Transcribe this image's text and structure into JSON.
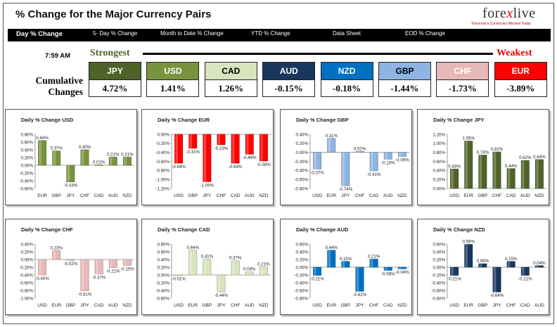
{
  "title": "% Change for the Major Currency Pairs",
  "logo": {
    "text_left": "fore",
    "text_x": "x",
    "text_right": "live",
    "tagline": "Tomorrow's Currencies Window Today"
  },
  "nav": [
    "Day % Change",
    "5- Day % Change",
    "Month to Date % Change",
    "YTD % Change",
    "Data Sheet",
    "EOD % Change"
  ],
  "time": "7:59 AM",
  "strongest_label": "Strongest",
  "weakest_label": "Weakest",
  "cumulative_label": [
    "Cumulative",
    "Changes"
  ],
  "cumulative": [
    {
      "ccy": "JPY",
      "value": "4.72%",
      "bg": "#4f6228",
      "fg": "#ffffff"
    },
    {
      "ccy": "USD",
      "value": "1.41%",
      "bg": "#77933c",
      "fg": "#ffffff"
    },
    {
      "ccy": "CAD",
      "value": "1.26%",
      "bg": "#d7e4bd",
      "fg": "#000000"
    },
    {
      "ccy": "AUD",
      "value": "-0.15%",
      "bg": "#17375e",
      "fg": "#ffffff"
    },
    {
      "ccy": "NZD",
      "value": "-0.18%",
      "bg": "#0070c0",
      "fg": "#ffffff"
    },
    {
      "ccy": "GBP",
      "value": "-1.44%",
      "bg": "#8db4e2",
      "fg": "#000000"
    },
    {
      "ccy": "CHF",
      "value": "-1.73%",
      "bg": "#e6b9b8",
      "fg": "#ffffff"
    },
    {
      "ccy": "EUR",
      "value": "-3.89%",
      "bg": "#ff0000",
      "fg": "#ffffff"
    }
  ],
  "chart_data": [
    {
      "type": "bar",
      "title": "Daily % Change USD",
      "base": "USD",
      "color": "#77933c",
      "categories": [
        "EUR",
        "GBP",
        "JPY",
        "CHF",
        "CAD",
        "AUD",
        "NZD"
      ],
      "values": [
        0.64,
        0.37,
        -0.43,
        0.4,
        0.01,
        0.21,
        0.21
      ],
      "ylim": [
        -0.6,
        0.8
      ],
      "yticks": [
        -0.6,
        -0.4,
        -0.2,
        0,
        0.2,
        0.4,
        0.6,
        0.8
      ],
      "grid": false
    },
    {
      "type": "bar",
      "title": "Daily % Change EUR",
      "base": "EUR",
      "color": "#ff0000",
      "categories": [
        "USD",
        "GBP",
        "JPY",
        "CHF",
        "CAD",
        "AUD",
        "NZD"
      ],
      "values": [
        -0.64,
        -0.31,
        -1.05,
        -0.23,
        -0.64,
        -0.44,
        -0.59
      ],
      "ylim": [
        -1.2,
        0
      ],
      "yticks": [
        -1.2,
        -1.0,
        -0.8,
        -0.6,
        -0.4,
        -0.2,
        0
      ],
      "grid": false
    },
    {
      "type": "bar",
      "title": "Daily % Change GBP",
      "base": "GBP",
      "color": "#8db4e2",
      "categories": [
        "USD",
        "EUR",
        "JPY",
        "CHF",
        "CAD",
        "AUD",
        "NZD"
      ],
      "values": [
        -0.37,
        0.31,
        -0.74,
        0.02,
        -0.41,
        -0.15,
        -0.09
      ],
      "ylim": [
        -0.8,
        0.4
      ],
      "yticks": [
        -0.8,
        -0.6,
        -0.4,
        -0.2,
        0,
        0.2,
        0.4
      ],
      "grid": false
    },
    {
      "type": "bar",
      "title": "Daily % Change JPY",
      "base": "JPY",
      "color": "#4f6228",
      "categories": [
        "USD",
        "EUR",
        "GBP",
        "CHF",
        "CAD",
        "AUD",
        "NZD"
      ],
      "values": [
        0.43,
        1.05,
        0.74,
        0.81,
        0.44,
        0.62,
        0.64
      ],
      "ylim": [
        0,
        1.2
      ],
      "yticks": [
        0,
        0.2,
        0.4,
        0.6,
        0.8,
        1.0,
        1.2
      ],
      "grid": false
    },
    {
      "type": "bar",
      "title": "Daily % Change CHF",
      "base": "CHF",
      "color": "#e6b9b8",
      "categories": [
        "USD",
        "EUR",
        "GBP",
        "JPY",
        "CAD",
        "AUD",
        "NZD"
      ],
      "values": [
        -0.4,
        0.23,
        -0.02,
        -0.81,
        -0.37,
        -0.21,
        -0.15
      ],
      "ylim": [
        -1.0,
        0.4
      ],
      "yticks": [
        -1.0,
        -0.8,
        -0.6,
        -0.4,
        -0.2,
        0,
        0.2,
        0.4
      ],
      "grid": false
    },
    {
      "type": "bar",
      "title": "Daily % Change CAD",
      "base": "CAD",
      "color": "#d7e4bd",
      "categories": [
        "USD",
        "EUR",
        "GBP",
        "JPY",
        "CHF",
        "AUD",
        "NZD"
      ],
      "values": [
        -0.01,
        0.64,
        0.41,
        -0.44,
        0.37,
        0.08,
        0.21
      ],
      "ylim": [
        -0.6,
        0.8
      ],
      "yticks": [
        -0.6,
        -0.4,
        -0.2,
        0,
        0.2,
        0.4,
        0.6,
        0.8
      ],
      "grid": false
    },
    {
      "type": "bar",
      "title": "Daily % Change AUD",
      "base": "AUD",
      "color": "#0070c0",
      "categories": [
        "USD",
        "EUR",
        "GBP",
        "JPY",
        "CHF",
        "CAD",
        "NZD"
      ],
      "values": [
        -0.21,
        0.44,
        0.15,
        -0.62,
        0.21,
        -0.08,
        -0.04
      ],
      "ylim": [
        -0.8,
        0.6
      ],
      "yticks": [
        -0.8,
        -0.6,
        -0.4,
        -0.2,
        0,
        0.2,
        0.4,
        0.6
      ],
      "grid": false
    },
    {
      "type": "bar",
      "title": "Daily % Change NZD",
      "base": "NZD",
      "color": "#17375e",
      "categories": [
        "USD",
        "EUR",
        "GBP",
        "JPY",
        "CHF",
        "CAD",
        "AUD"
      ],
      "values": [
        -0.21,
        0.59,
        0.09,
        -0.64,
        0.15,
        -0.21,
        0.04
      ],
      "ylim": [
        -0.8,
        0.6
      ],
      "yticks": [
        -0.8,
        -0.6,
        -0.4,
        -0.2,
        0,
        0.2,
        0.4,
        0.6
      ],
      "grid": false
    }
  ]
}
